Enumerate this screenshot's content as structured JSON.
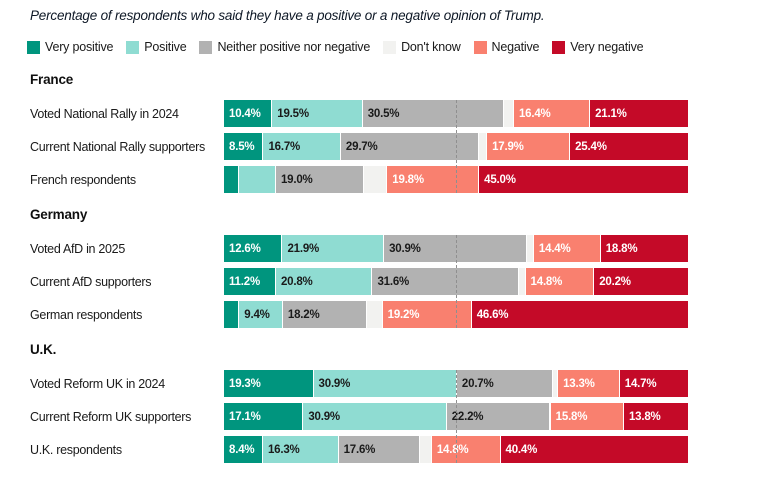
{
  "title": "Percentage of respondents who said they have a positive or a negative opinion of Trump.",
  "legend": [
    {
      "label": "Very positive",
      "color": "#00957E"
    },
    {
      "label": "Positive",
      "color": "#8FDCD2"
    },
    {
      "label": "Neither positive nor negative",
      "color": "#B2B2B2"
    },
    {
      "label": "Don't know",
      "color": "#F2F2F0"
    },
    {
      "label": "Negative",
      "color": "#F9806F"
    },
    {
      "label": "Very negative",
      "color": "#C40A28"
    }
  ],
  "style": {
    "label_color_on_dark": "#ffffff",
    "label_color_on_light": "#1a1a1a",
    "reference_line_color": "#8f8f8f"
  },
  "chart_data": {
    "type": "bar",
    "subtype": "horizontal-stacked",
    "unit": "percent",
    "xlim": [
      0,
      100
    ],
    "reference_line": {
      "value": 50,
      "style": "dashed"
    },
    "series_names": [
      "Very positive",
      "Positive",
      "Neither positive nor negative",
      "Don't know",
      "Negative",
      "Very negative"
    ],
    "value_label_styles": [
      "on_dark",
      "on_light",
      "on_light",
      "none",
      "on_dark",
      "on_dark"
    ],
    "groups": [
      {
        "name": "France",
        "rows": [
          {
            "label": "Voted National Rally in 2024",
            "values": [
              10.4,
              19.5,
              30.5,
              2.1,
              16.4,
              21.1
            ],
            "value_labels": [
              "10.4%",
              "19.5%",
              "30.5%",
              "",
              "16.4%",
              "21.1%"
            ]
          },
          {
            "label": "Current National Rally supporters",
            "values": [
              8.5,
              16.7,
              29.7,
              1.8,
              17.9,
              25.4
            ],
            "value_labels": [
              "8.5%",
              "16.7%",
              "29.7%",
              "",
              "17.9%",
              "25.4%"
            ]
          },
          {
            "label": "French respondents",
            "values": [
              3.2,
              8.0,
              19.0,
              5.0,
              19.8,
              45.0
            ],
            "value_labels": [
              "",
              "",
              "19.0%",
              "",
              "19.8%",
              "45.0%"
            ]
          }
        ]
      },
      {
        "name": "Germany",
        "rows": [
          {
            "label": "Voted AfD in 2025",
            "values": [
              12.6,
              21.9,
              30.9,
              1.4,
              14.4,
              18.8
            ],
            "value_labels": [
              "12.6%",
              "21.9%",
              "30.9%",
              "",
              "14.4%",
              "18.8%"
            ]
          },
          {
            "label": "Current AfD supporters",
            "values": [
              11.2,
              20.8,
              31.6,
              1.4,
              14.8,
              20.2
            ],
            "value_labels": [
              "11.2%",
              "20.8%",
              "31.6%",
              "",
              "14.8%",
              "20.2%"
            ]
          },
          {
            "label": "German respondents",
            "values": [
              3.3,
              9.4,
              18.2,
              3.3,
              19.2,
              46.6
            ],
            "value_labels": [
              "",
              "9.4%",
              "18.2%",
              "",
              "19.2%",
              "46.6%"
            ]
          }
        ]
      },
      {
        "name": "U.K.",
        "rows": [
          {
            "label": "Voted Reform UK in 2024",
            "values": [
              19.3,
              30.9,
              20.7,
              1.1,
              13.3,
              14.7
            ],
            "value_labels": [
              "19.3%",
              "30.9%",
              "20.7%",
              "",
              "13.3%",
              "14.7%"
            ]
          },
          {
            "label": "Current Reform UK supporters",
            "values": [
              17.1,
              30.9,
              22.2,
              0.2,
              15.8,
              13.8
            ],
            "value_labels": [
              "17.1%",
              "30.9%",
              "22.2%",
              "",
              "15.8%",
              "13.8%"
            ]
          },
          {
            "label": "U.K. respondents",
            "values": [
              8.4,
              16.3,
              17.6,
              2.5,
              14.8,
              40.4
            ],
            "value_labels": [
              "8.4%",
              "16.3%",
              "17.6%",
              "",
              "14.8%",
              "40.4%"
            ]
          }
        ]
      }
    ]
  }
}
